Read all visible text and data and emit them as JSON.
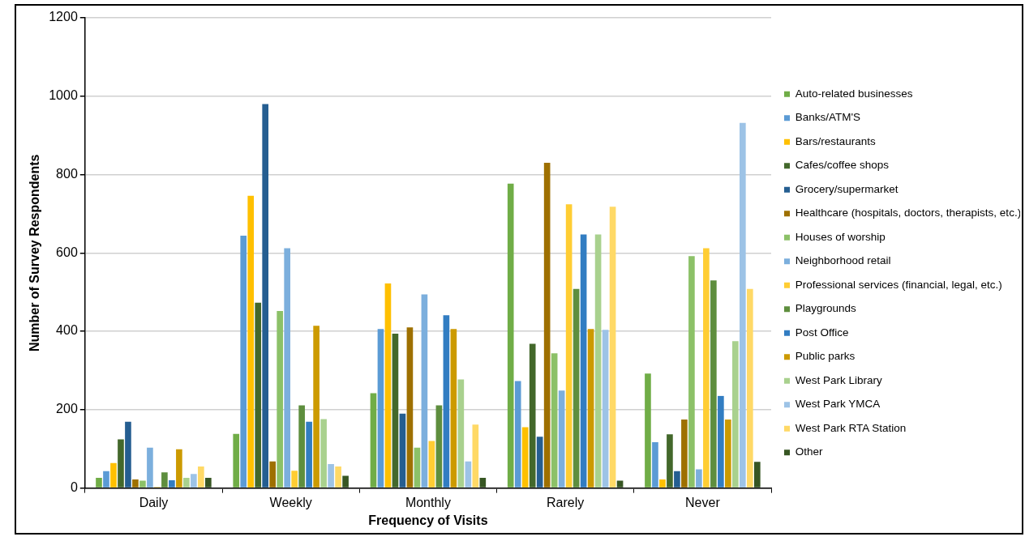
{
  "chart_data": {
    "type": "bar",
    "xlabel": "Frequency of Visits",
    "ylabel": "Number of Survey Respondents",
    "categories": [
      "Daily",
      "Weekly",
      "Monthly",
      "Rarely",
      "Never"
    ],
    "ylim": [
      0,
      1200
    ],
    "yticks": [
      0,
      200,
      400,
      600,
      800,
      1000,
      1200
    ],
    "grid": "y",
    "legend": "right",
    "series": [
      {
        "name": "Auto-related businesses",
        "color": "#70ad47",
        "values": [
          26,
          138,
          242,
          777,
          292
        ]
      },
      {
        "name": "Banks/ATM'S",
        "color": "#5b9bd5",
        "values": [
          43,
          644,
          406,
          273,
          117
        ]
      },
      {
        "name": "Bars/restaurants",
        "color": "#ffc000",
        "values": [
          64,
          746,
          522,
          155,
          22
        ]
      },
      {
        "name": "Cafes/coffee shops",
        "color": "#43682b",
        "values": [
          124,
          473,
          394,
          368,
          137
        ]
      },
      {
        "name": "Grocery/supermarket",
        "color": "#255e91",
        "values": [
          169,
          980,
          190,
          131,
          43
        ]
      },
      {
        "name": "Healthcare (hospitals, doctors, therapists, etc.)",
        "color": "#9e7000",
        "values": [
          22,
          68,
          410,
          830,
          175
        ]
      },
      {
        "name": "Houses of worship",
        "color": "#8cc168",
        "values": [
          19,
          452,
          103,
          344,
          592
        ]
      },
      {
        "name": "Neighborhood retail",
        "color": "#7cafdd",
        "values": [
          103,
          612,
          494,
          249,
          48
        ]
      },
      {
        "name": "Professional services (financial, legal, etc.)",
        "color": "#ffcd33",
        "values": [
          3,
          44,
          120,
          724,
          612
        ]
      },
      {
        "name": "Playgrounds",
        "color": "#5e8e3e",
        "values": [
          40,
          211,
          211,
          508,
          530
        ]
      },
      {
        "name": "Post Office",
        "color": "#327dc2",
        "values": [
          20,
          169,
          441,
          647,
          235
        ]
      },
      {
        "name": "Public parks",
        "color": "#cc9a00",
        "values": [
          99,
          414,
          406,
          406,
          175
        ]
      },
      {
        "name": "West Park Library",
        "color": "#a9d18e",
        "values": [
          26,
          176,
          277,
          647,
          375
        ]
      },
      {
        "name": "West Park YMCA",
        "color": "#9dc3e6",
        "values": [
          36,
          61,
          68,
          404,
          932
        ]
      },
      {
        "name": "West Park RTA Station",
        "color": "#ffd966",
        "values": [
          55,
          55,
          162,
          718,
          508
        ]
      },
      {
        "name": "Other",
        "color": "#375623",
        "values": [
          26,
          31,
          26,
          19,
          67
        ]
      }
    ]
  }
}
